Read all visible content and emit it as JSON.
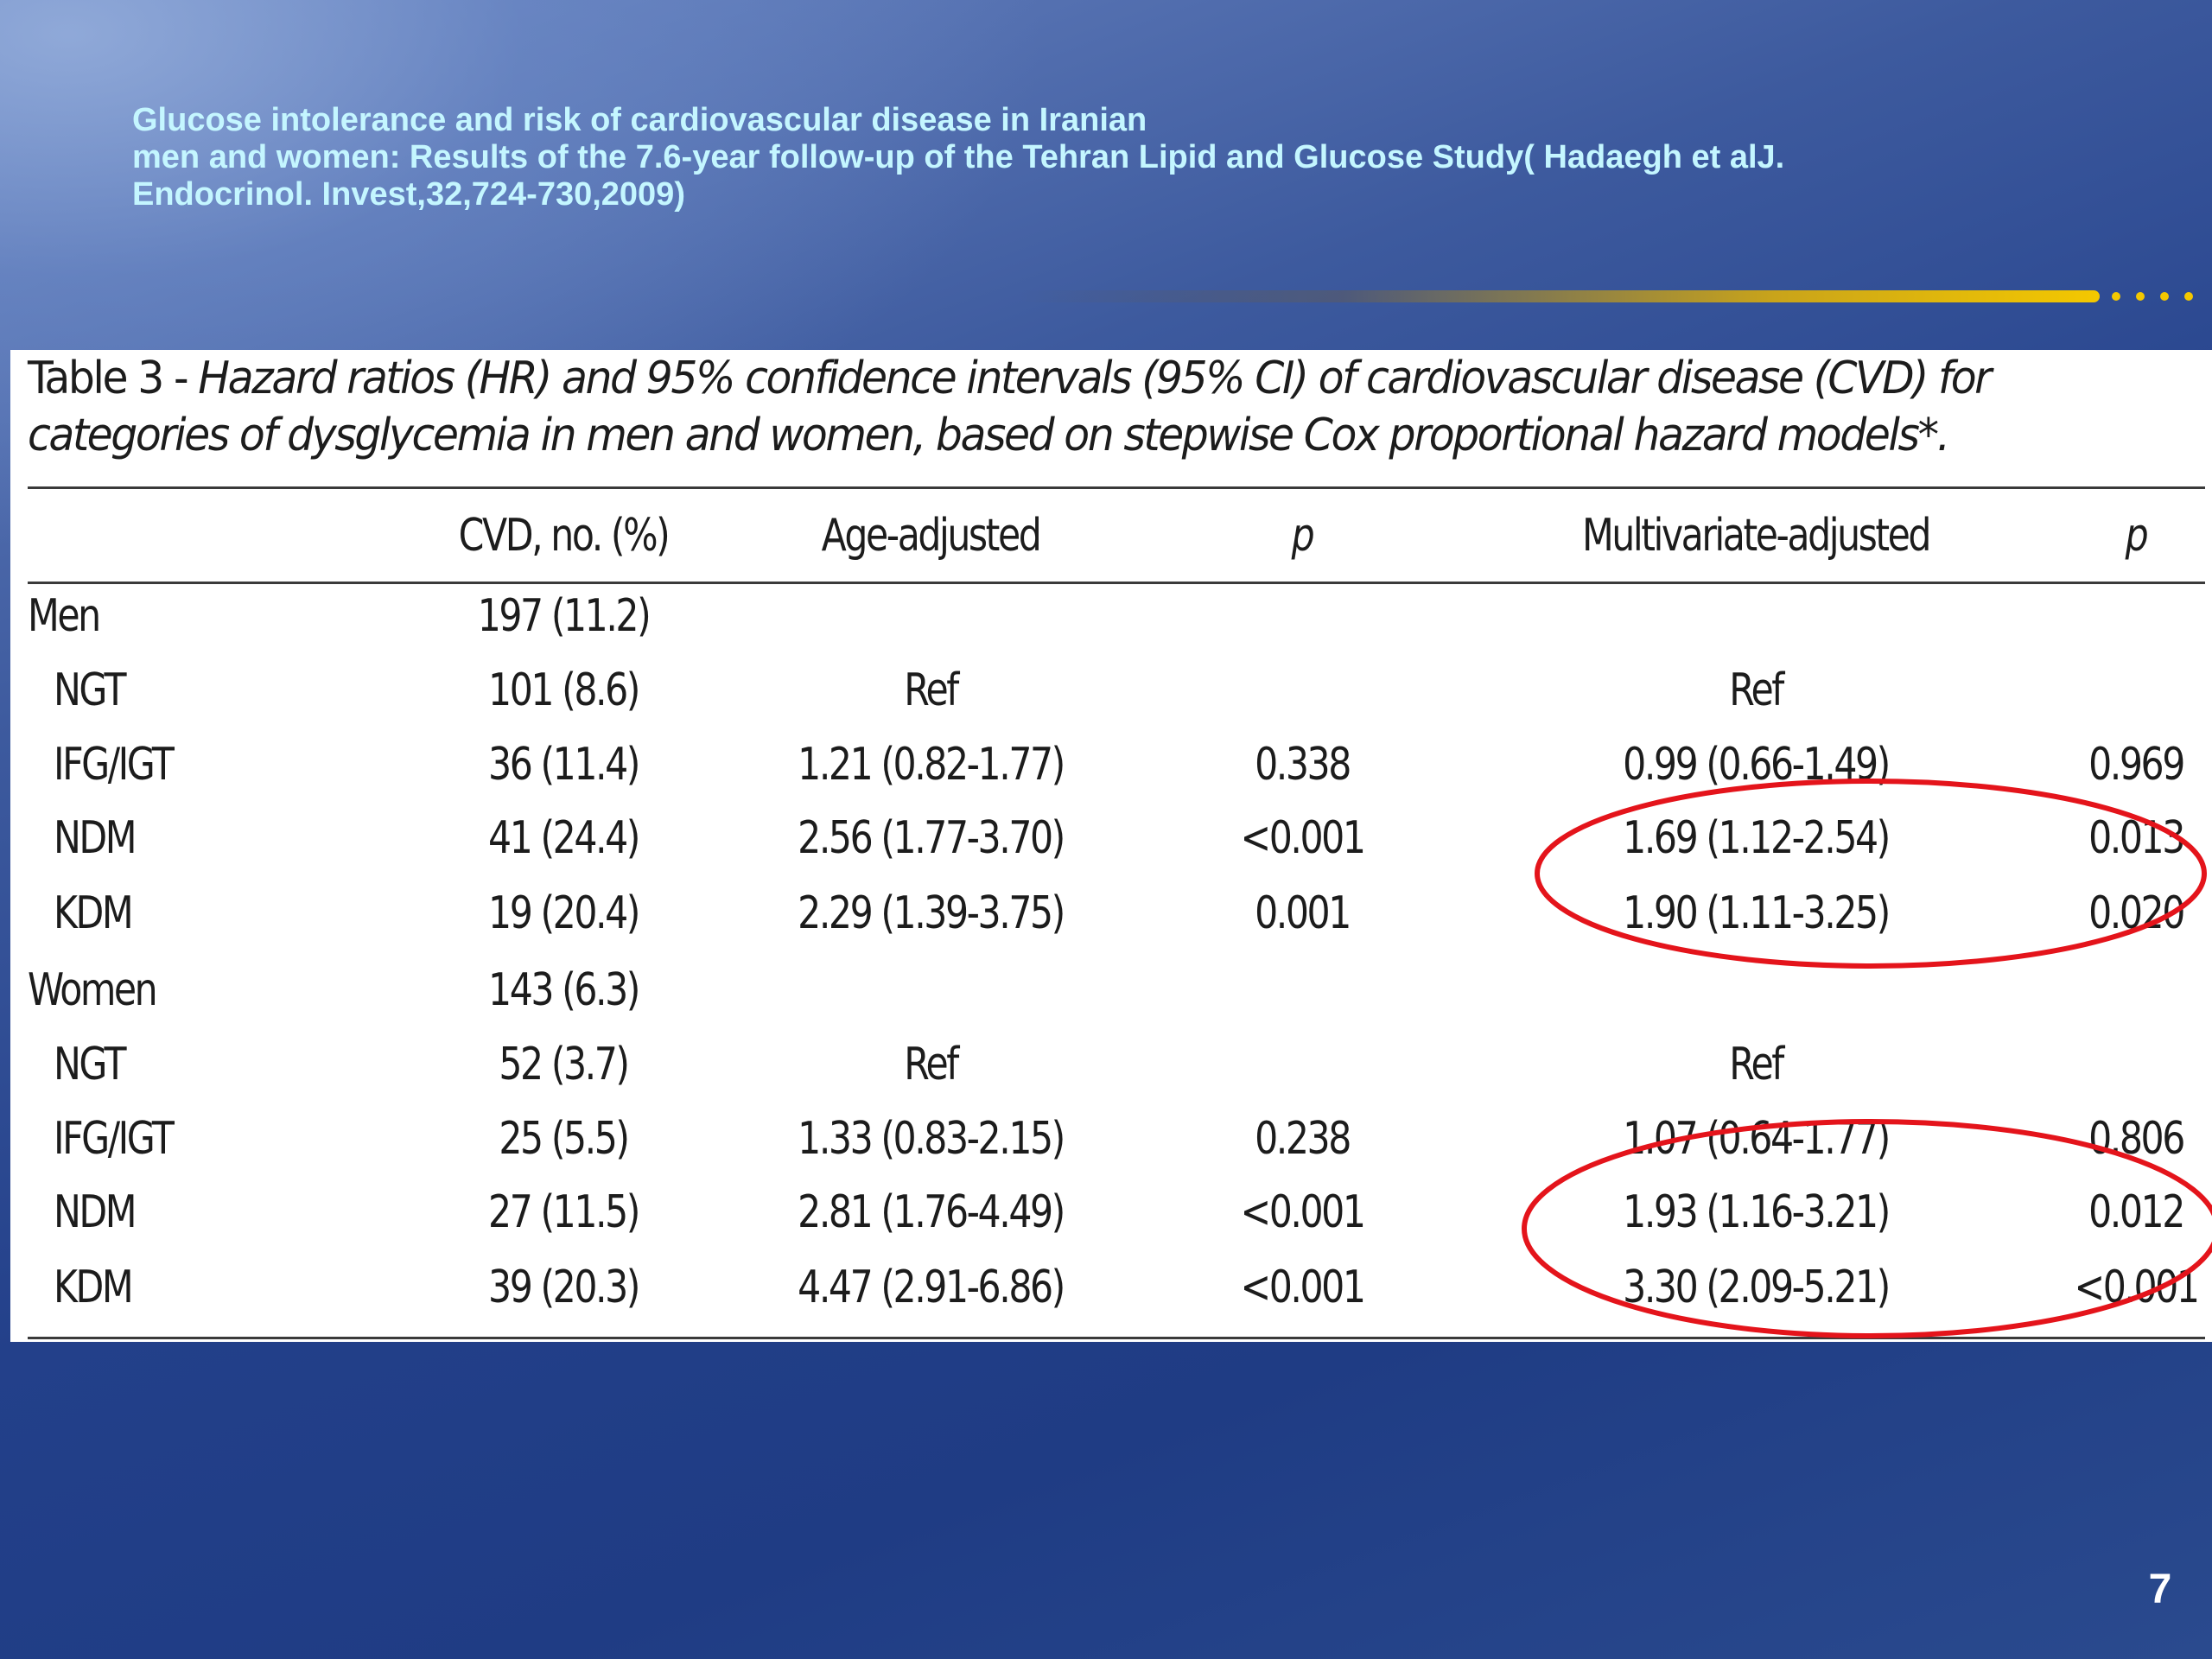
{
  "slide": {
    "title_lines": [
      "Glucose intolerance and risk of cardiovascular disease in Iranian",
      "men and women: Results of the 7.6-year follow-up of the Tehran Lipid and Glucose Study( Hadaegh et alJ.",
      "Endocrinol. Invest,32,724-730,2009)"
    ],
    "page_number": "7",
    "accent_color": "#f4c800",
    "title_color": "#c4f6ff",
    "highlight_color": "#e4141b"
  },
  "table": {
    "caption_lead": "Table 3 - ",
    "caption_body": "Hazard ratios (HR) and 95% confidence intervals (95% CI) of cardiovascular disease (CVD) for categories of dysglycemia in men and women, based on stepwise Cox proportional hazard models*.",
    "headers": [
      "CVD, no. (%)",
      "Age-adjusted",
      "p",
      "Multivariate-adjusted",
      "p"
    ],
    "rows": [
      {
        "label": "Men",
        "group": true,
        "cvd": "197 (11.2)",
        "age": "",
        "p1": "",
        "multi": "",
        "p2": ""
      },
      {
        "label": "NGT",
        "group": false,
        "cvd": "101 (8.6)",
        "age": "Ref",
        "p1": "",
        "multi": "Ref",
        "p2": ""
      },
      {
        "label": "IFG/IGT",
        "group": false,
        "cvd": "36 (11.4)",
        "age": "1.21 (0.82-1.77)",
        "p1": "0.338",
        "multi": "0.99 (0.66-1.49)",
        "p2": "0.969"
      },
      {
        "label": "NDM",
        "group": false,
        "cvd": "41 (24.4)",
        "age": "2.56 (1.77-3.70)",
        "p1": "<0.001",
        "multi": "1.69 (1.12-2.54)",
        "p2": "0.013"
      },
      {
        "label": "KDM",
        "group": false,
        "cvd": "19 (20.4)",
        "age": "2.29 (1.39-3.75)",
        "p1": "0.001",
        "multi": "1.90 (1.11-3.25)",
        "p2": "0.020"
      },
      {
        "label": "Women",
        "group": true,
        "cvd": "143 (6.3)",
        "age": "",
        "p1": "",
        "multi": "",
        "p2": ""
      },
      {
        "label": "NGT",
        "group": false,
        "cvd": "52 (3.7)",
        "age": "Ref",
        "p1": "",
        "multi": "Ref",
        "p2": ""
      },
      {
        "label": "IFG/IGT",
        "group": false,
        "cvd": "25 (5.5)",
        "age": "1.33 (0.83-2.15)",
        "p1": "0.238",
        "multi": "1.07 (0.64-1.77)",
        "p2": "0.806"
      },
      {
        "label": "NDM",
        "group": false,
        "cvd": "27 (11.5)",
        "age": "2.81 (1.76-4.49)",
        "p1": "<0.001",
        "multi": "1.93 (1.16-3.21)",
        "p2": "0.012"
      },
      {
        "label": "KDM",
        "group": false,
        "cvd": "39 (20.3)",
        "age": "4.47 (2.91-6.86)",
        "p1": "<0.001",
        "multi": "3.30 (2.09-5.21)",
        "p2": "<0.001"
      }
    ]
  }
}
